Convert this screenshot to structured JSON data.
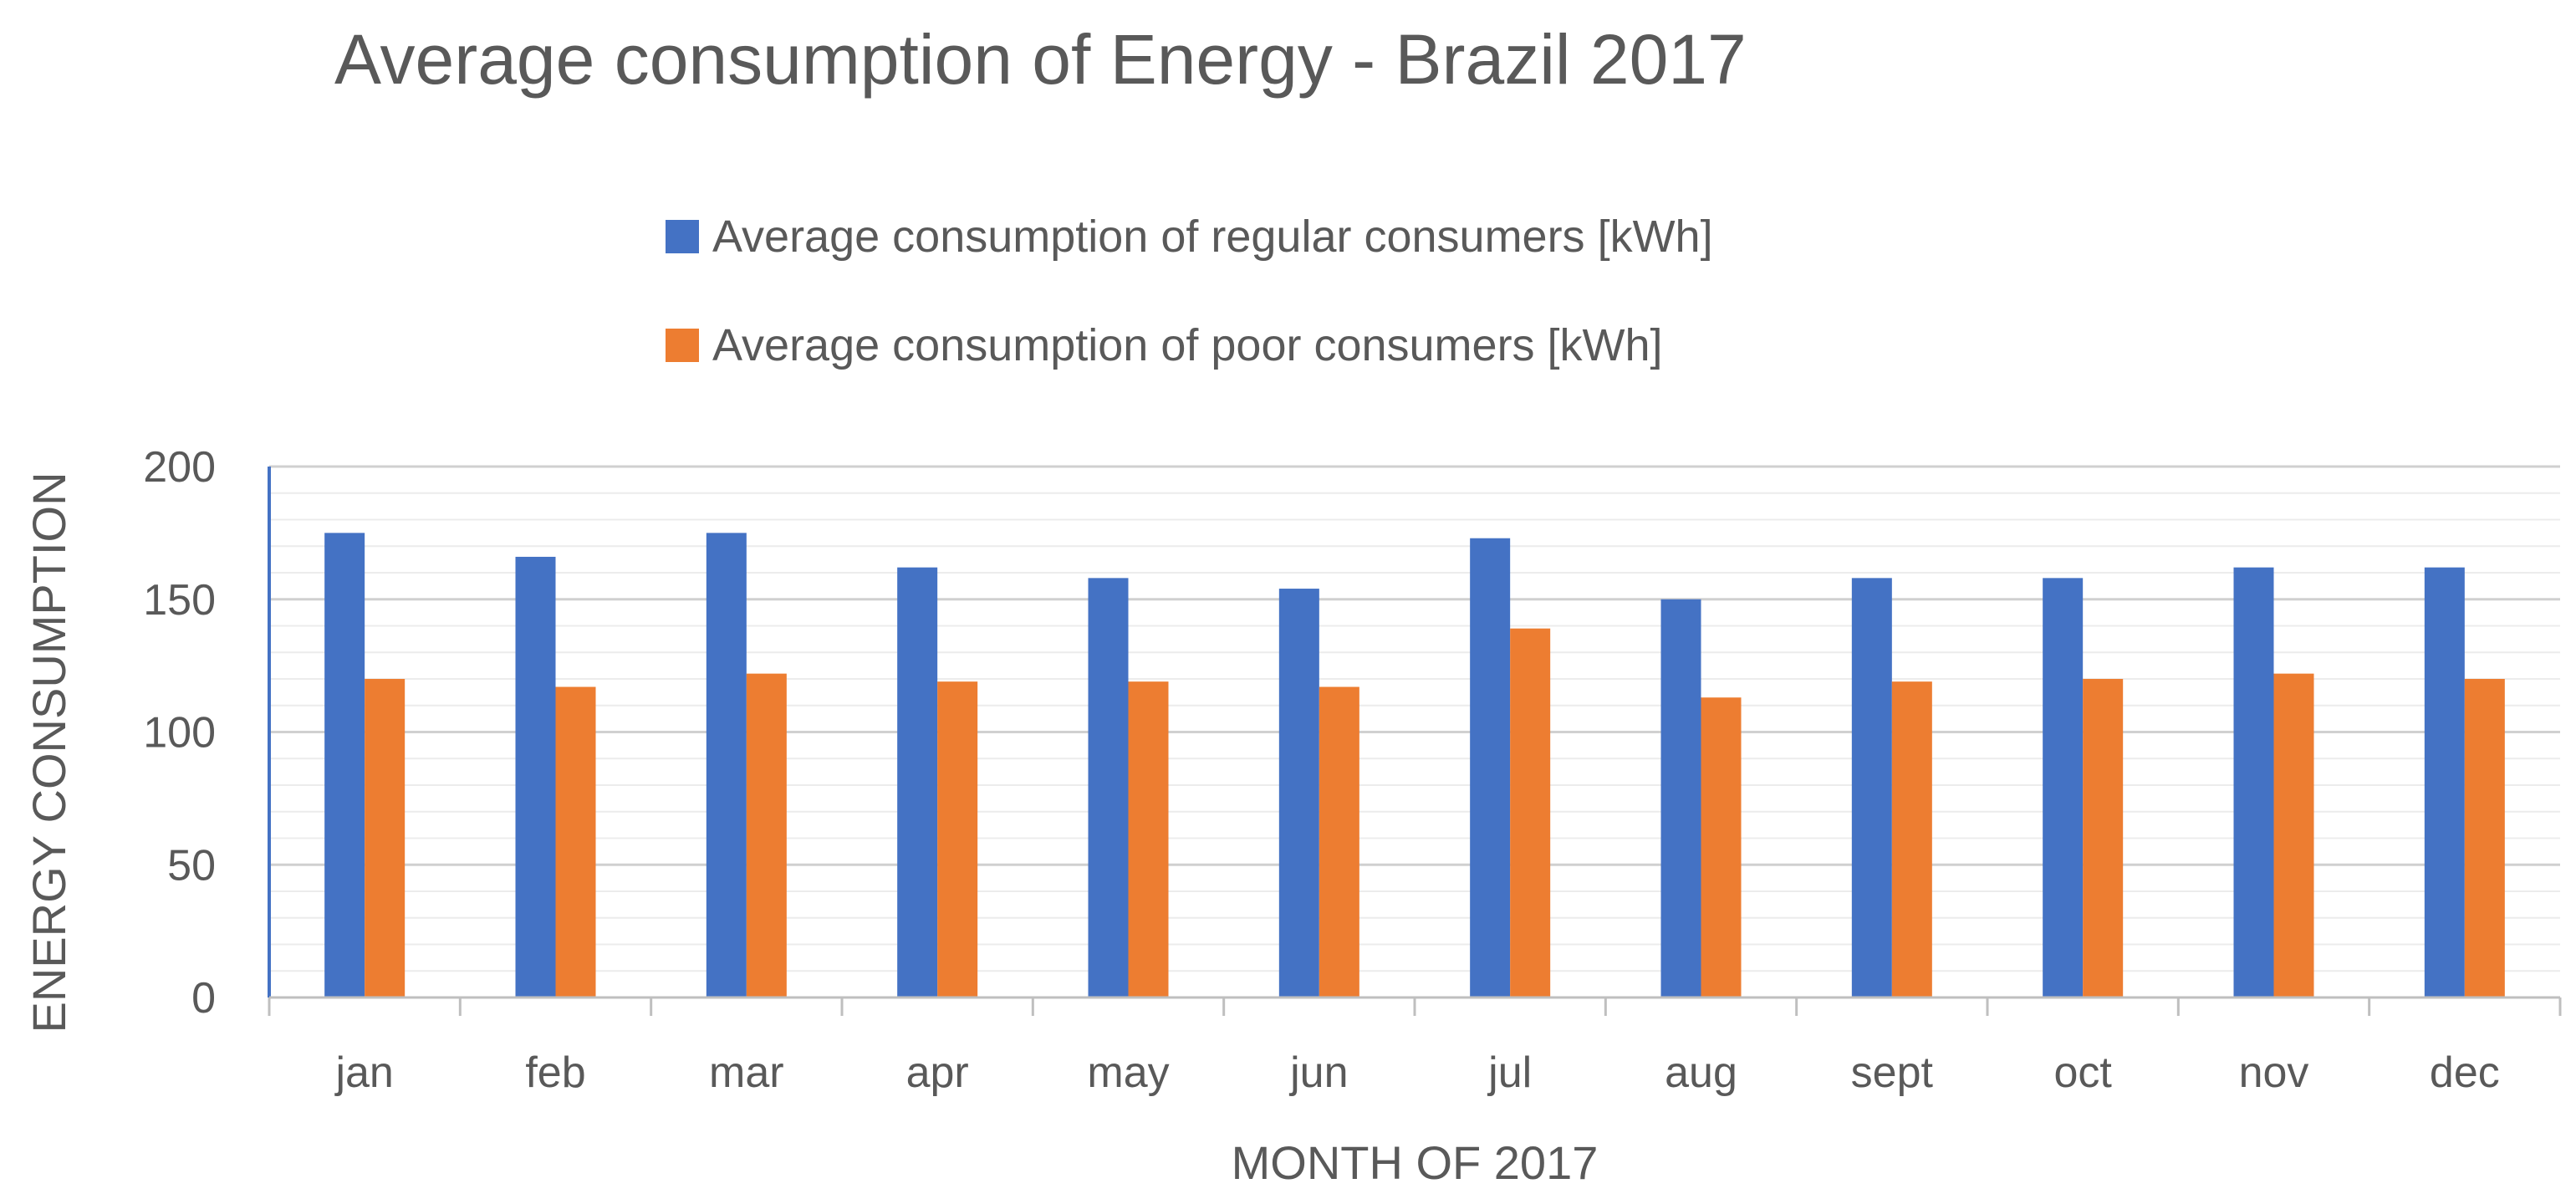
{
  "chart_data": {
    "type": "bar",
    "title": "Average consumption of Energy - Brazil 2017",
    "xlabel": "MONTH OF 2017",
    "ylabel": "ENERGY CONSUMPTION",
    "ylim": [
      0,
      200
    ],
    "yticks": [
      "0",
      "50",
      "100",
      "150",
      "200"
    ],
    "grid": true,
    "legend_position": "top",
    "categories": [
      "jan",
      "feb",
      "mar",
      "apr",
      "may",
      "jun",
      "jul",
      "aug",
      "sept",
      "oct",
      "nov",
      "dec"
    ],
    "series": [
      {
        "name": "Average consumption of regular consumers [kWh]",
        "color": "#4472C4",
        "values": [
          175,
          166,
          175,
          162,
          158,
          154,
          173,
          150,
          158,
          158,
          162,
          162
        ]
      },
      {
        "name": "Average consumption of poor consumers [kWh]",
        "color": "#ED7D31",
        "values": [
          120,
          117,
          122,
          119,
          119,
          117,
          139,
          113,
          119,
          120,
          122,
          120
        ]
      }
    ]
  }
}
